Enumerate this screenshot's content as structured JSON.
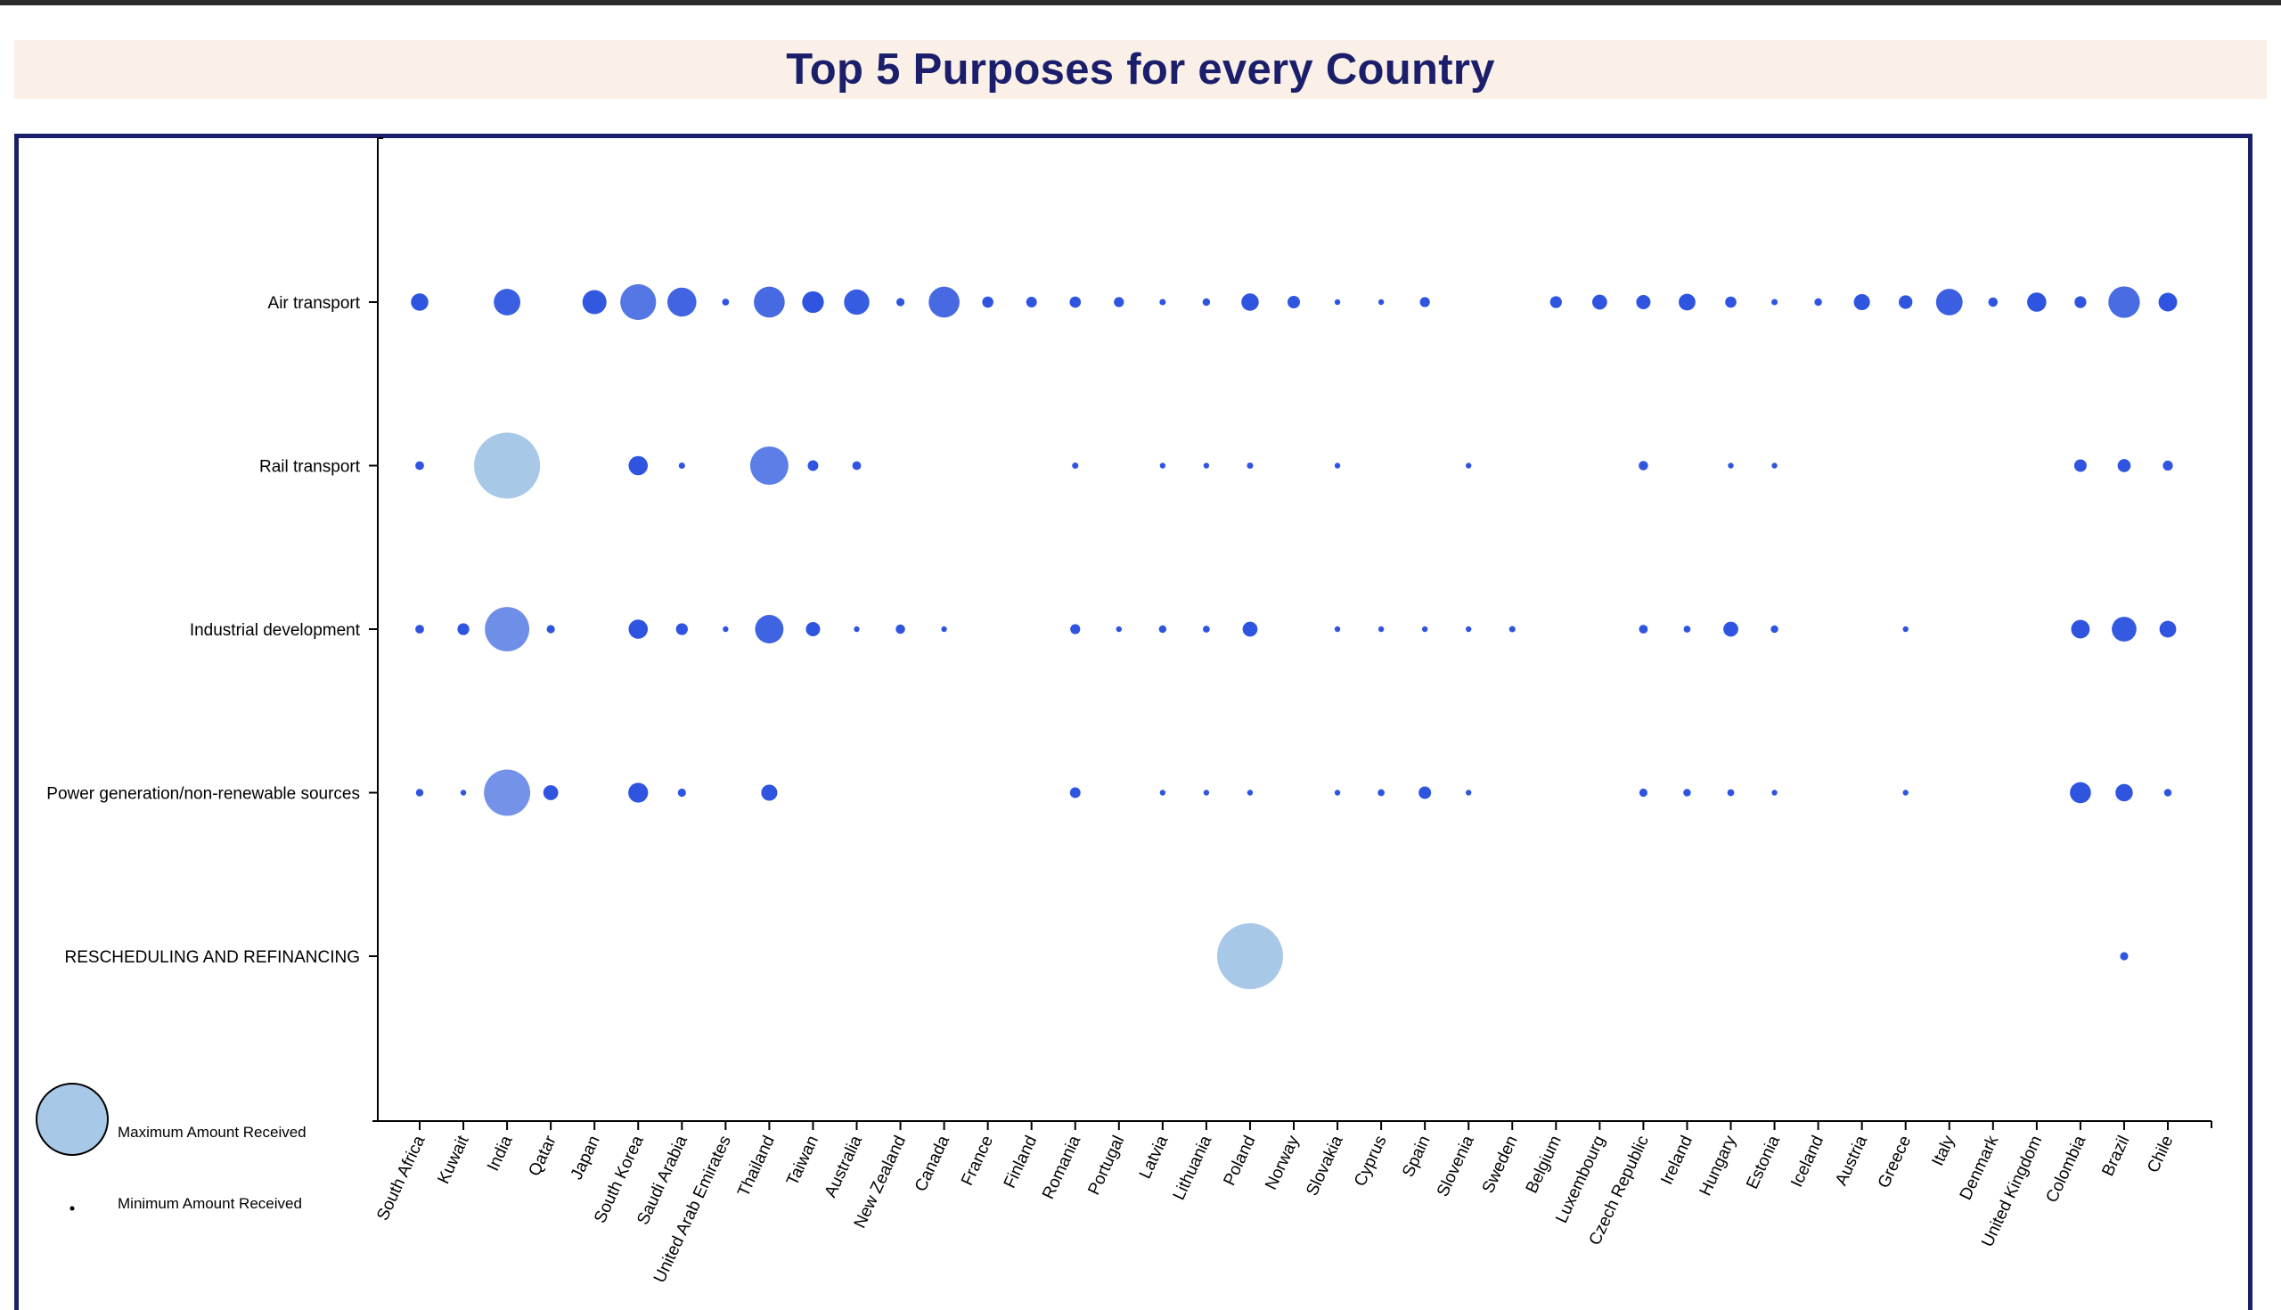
{
  "title": "Top 5 Purposes for every Country",
  "colors": {
    "title": "#1b1f6b",
    "frame": "#1b1f6b",
    "title_band": "#fbf0e8",
    "bubble_max": "#a8c8e8",
    "bubble_mid": "#6f8ee8",
    "bubble_min": "#2f55e0"
  },
  "legend": {
    "max_label": "Maximum Amount Received",
    "min_label": "Minimum Amount Received"
  },
  "chart_data": {
    "type": "scatter",
    "title": "Top 5 Purposes for every Country",
    "size_encoding": "amount received (relative bubble size, 0-1)",
    "x_categories": [
      "South Africa",
      "Kuwait",
      "India",
      "Qatar",
      "Japan",
      "South Korea",
      "Saudi Arabia",
      "United Arab Emirates",
      "Thailand",
      "Taiwan",
      "Australia",
      "New Zealand",
      "Canada",
      "France",
      "Finland",
      "Romania",
      "Portugal",
      "Latvia",
      "Lithuania",
      "Poland",
      "Norway",
      "Slovakia",
      "Cyprus",
      "Spain",
      "Slovenia",
      "Sweden",
      "Belgium",
      "Luxembourg",
      "Czech Republic",
      "Ireland",
      "Hungary",
      "Estonia",
      "Iceland",
      "Austria",
      "Greece",
      "Italy",
      "Denmark",
      "United Kingdom",
      "Colombia",
      "Brazil",
      "Chile"
    ],
    "y_categories": [
      "Air transport",
      "Rail transport",
      "Industrial development",
      "Power generation/non-renewable sources",
      "RESCHEDULING AND REFINANCING"
    ],
    "points": [
      {
        "country": "South Africa",
        "purpose": "Air transport",
        "size": 0.21
      },
      {
        "country": "India",
        "purpose": "Air transport",
        "size": 0.36
      },
      {
        "country": "Japan",
        "purpose": "Air transport",
        "size": 0.32
      },
      {
        "country": "South Korea",
        "purpose": "Air transport",
        "size": 0.51
      },
      {
        "country": "Saudi Arabia",
        "purpose": "Air transport",
        "size": 0.4
      },
      {
        "country": "United Arab Emirates",
        "purpose": "Air transport",
        "size": 0.04
      },
      {
        "country": "Thailand",
        "purpose": "Air transport",
        "size": 0.43
      },
      {
        "country": "Taiwan",
        "purpose": "Air transport",
        "size": 0.28
      },
      {
        "country": "Australia",
        "purpose": "Air transport",
        "size": 0.34
      },
      {
        "country": "New Zealand",
        "purpose": "Air transport",
        "size": 0.06
      },
      {
        "country": "Canada",
        "purpose": "Air transport",
        "size": 0.43
      },
      {
        "country": "France",
        "purpose": "Air transport",
        "size": 0.11
      },
      {
        "country": "Finland",
        "purpose": "Air transport",
        "size": 0.1
      },
      {
        "country": "Romania",
        "purpose": "Air transport",
        "size": 0.11
      },
      {
        "country": "Portugal",
        "purpose": "Air transport",
        "size": 0.09
      },
      {
        "country": "Latvia",
        "purpose": "Air transport",
        "size": 0.03
      },
      {
        "country": "Lithuania",
        "purpose": "Air transport",
        "size": 0.05
      },
      {
        "country": "Poland",
        "purpose": "Air transport",
        "size": 0.21
      },
      {
        "country": "Norway",
        "purpose": "Air transport",
        "size": 0.13
      },
      {
        "country": "Slovakia",
        "purpose": "Air transport",
        "size": 0.02
      },
      {
        "country": "Cyprus",
        "purpose": "Air transport",
        "size": 0.02
      },
      {
        "country": "Spain",
        "purpose": "Air transport",
        "size": 0.09
      },
      {
        "country": "Belgium",
        "purpose": "Air transport",
        "size": 0.12
      },
      {
        "country": "Luxembourg",
        "purpose": "Air transport",
        "size": 0.17
      },
      {
        "country": "Czech Republic",
        "purpose": "Air transport",
        "size": 0.16
      },
      {
        "country": "Ireland",
        "purpose": "Air transport",
        "size": 0.2
      },
      {
        "country": "Hungary",
        "purpose": "Air transport",
        "size": 0.11
      },
      {
        "country": "Estonia",
        "purpose": "Air transport",
        "size": 0.03
      },
      {
        "country": "Iceland",
        "purpose": "Air transport",
        "size": 0.05
      },
      {
        "country": "Austria",
        "purpose": "Air transport",
        "size": 0.19
      },
      {
        "country": "Greece",
        "purpose": "Air transport",
        "size": 0.15
      },
      {
        "country": "Italy",
        "purpose": "Air transport",
        "size": 0.36
      },
      {
        "country": "Denmark",
        "purpose": "Air transport",
        "size": 0.08
      },
      {
        "country": "United Kingdom",
        "purpose": "Air transport",
        "size": 0.24
      },
      {
        "country": "Colombia",
        "purpose": "Air transport",
        "size": 0.12
      },
      {
        "country": "Brazil",
        "purpose": "Air transport",
        "size": 0.44
      },
      {
        "country": "Chile",
        "purpose": "Air transport",
        "size": 0.23
      },
      {
        "country": "South Africa",
        "purpose": "Rail transport",
        "size": 0.07
      },
      {
        "country": "India",
        "purpose": "Rail transport",
        "size": 1.0
      },
      {
        "country": "South Korea",
        "purpose": "Rail transport",
        "size": 0.24
      },
      {
        "country": "Saudi Arabia",
        "purpose": "Rail transport",
        "size": 0.03
      },
      {
        "country": "Thailand",
        "purpose": "Rail transport",
        "size": 0.55
      },
      {
        "country": "Taiwan",
        "purpose": "Rail transport",
        "size": 0.1
      },
      {
        "country": "Australia",
        "purpose": "Rail transport",
        "size": 0.07
      },
      {
        "country": "Romania",
        "purpose": "Rail transport",
        "size": 0.03
      },
      {
        "country": "Latvia",
        "purpose": "Rail transport",
        "size": 0.02
      },
      {
        "country": "Lithuania",
        "purpose": "Rail transport",
        "size": 0.02
      },
      {
        "country": "Poland",
        "purpose": "Rail transport",
        "size": 0.03
      },
      {
        "country": "Slovakia",
        "purpose": "Rail transport",
        "size": 0.02
      },
      {
        "country": "Slovenia",
        "purpose": "Rail transport",
        "size": 0.02
      },
      {
        "country": "Czech Republic",
        "purpose": "Rail transport",
        "size": 0.08
      },
      {
        "country": "Hungary",
        "purpose": "Rail transport",
        "size": 0.02
      },
      {
        "country": "Estonia",
        "purpose": "Rail transport",
        "size": 0.02
      },
      {
        "country": "Colombia",
        "purpose": "Rail transport",
        "size": 0.13
      },
      {
        "country": "Brazil",
        "purpose": "Rail transport",
        "size": 0.14
      },
      {
        "country": "Chile",
        "purpose": "Rail transport",
        "size": 0.09
      },
      {
        "country": "South Africa",
        "purpose": "Industrial development",
        "size": 0.07
      },
      {
        "country": "Kuwait",
        "purpose": "Industrial development",
        "size": 0.12
      },
      {
        "country": "India",
        "purpose": "Industrial development",
        "size": 0.65
      },
      {
        "country": "Qatar",
        "purpose": "Industrial development",
        "size": 0.06
      },
      {
        "country": "South Korea",
        "purpose": "Industrial development",
        "size": 0.24
      },
      {
        "country": "Saudi Arabia",
        "purpose": "Industrial development",
        "size": 0.12
      },
      {
        "country": "United Arab Emirates",
        "purpose": "Industrial development",
        "size": 0.02
      },
      {
        "country": "Thailand",
        "purpose": "Industrial development",
        "size": 0.39
      },
      {
        "country": "Taiwan",
        "purpose": "Industrial development",
        "size": 0.16
      },
      {
        "country": "Australia",
        "purpose": "Industrial development",
        "size": 0.02
      },
      {
        "country": "New Zealand",
        "purpose": "Industrial development",
        "size": 0.08
      },
      {
        "country": "Canada",
        "purpose": "Industrial development",
        "size": 0.02
      },
      {
        "country": "Romania",
        "purpose": "Industrial development",
        "size": 0.09
      },
      {
        "country": "Portugal",
        "purpose": "Industrial development",
        "size": 0.02
      },
      {
        "country": "Latvia",
        "purpose": "Industrial development",
        "size": 0.05
      },
      {
        "country": "Lithuania",
        "purpose": "Industrial development",
        "size": 0.04
      },
      {
        "country": "Poland",
        "purpose": "Industrial development",
        "size": 0.17
      },
      {
        "country": "Slovakia",
        "purpose": "Industrial development",
        "size": 0.02
      },
      {
        "country": "Cyprus",
        "purpose": "Industrial development",
        "size": 0.02
      },
      {
        "country": "Spain",
        "purpose": "Industrial development",
        "size": 0.02
      },
      {
        "country": "Slovenia",
        "purpose": "Industrial development",
        "size": 0.02
      },
      {
        "country": "Sweden",
        "purpose": "Industrial development",
        "size": 0.03
      },
      {
        "country": "Czech Republic",
        "purpose": "Industrial development",
        "size": 0.07
      },
      {
        "country": "Ireland",
        "purpose": "Industrial development",
        "size": 0.04
      },
      {
        "country": "Hungary",
        "purpose": "Industrial development",
        "size": 0.17
      },
      {
        "country": "Estonia",
        "purpose": "Industrial development",
        "size": 0.05
      },
      {
        "country": "Greece",
        "purpose": "Industrial development",
        "size": 0.02
      },
      {
        "country": "Colombia",
        "purpose": "Industrial development",
        "size": 0.23
      },
      {
        "country": "Brazil",
        "purpose": "Industrial development",
        "size": 0.33
      },
      {
        "country": "Chile",
        "purpose": "Industrial development",
        "size": 0.2
      },
      {
        "country": "South Africa",
        "purpose": "Power generation/non-renewable sources",
        "size": 0.05
      },
      {
        "country": "Kuwait",
        "purpose": "Power generation/non-renewable sources",
        "size": 0.02
      },
      {
        "country": "India",
        "purpose": "Power generation/non-renewable sources",
        "size": 0.68
      },
      {
        "country": "Qatar",
        "purpose": "Power generation/non-renewable sources",
        "size": 0.17
      },
      {
        "country": "South Korea",
        "purpose": "Power generation/non-renewable sources",
        "size": 0.25
      },
      {
        "country": "Saudi Arabia",
        "purpose": "Power generation/non-renewable sources",
        "size": 0.06
      },
      {
        "country": "Thailand",
        "purpose": "Power generation/non-renewable sources",
        "size": 0.19
      },
      {
        "country": "Romania",
        "purpose": "Power generation/non-renewable sources",
        "size": 0.1
      },
      {
        "country": "Latvia",
        "purpose": "Power generation/non-renewable sources",
        "size": 0.02
      },
      {
        "country": "Lithuania",
        "purpose": "Power generation/non-renewable sources",
        "size": 0.02
      },
      {
        "country": "Poland",
        "purpose": "Power generation/non-renewable sources",
        "size": 0.02
      },
      {
        "country": "Slovakia",
        "purpose": "Power generation/non-renewable sources",
        "size": 0.02
      },
      {
        "country": "Cyprus",
        "purpose": "Power generation/non-renewable sources",
        "size": 0.04
      },
      {
        "country": "Spain",
        "purpose": "Power generation/non-renewable sources",
        "size": 0.13
      },
      {
        "country": "Slovenia",
        "purpose": "Power generation/non-renewable sources",
        "size": 0.02
      },
      {
        "country": "Czech Republic",
        "purpose": "Power generation/non-renewable sources",
        "size": 0.06
      },
      {
        "country": "Ireland",
        "purpose": "Power generation/non-renewable sources",
        "size": 0.05
      },
      {
        "country": "Hungary",
        "purpose": "Power generation/non-renewable sources",
        "size": 0.04
      },
      {
        "country": "Estonia",
        "purpose": "Power generation/non-renewable sources",
        "size": 0.02
      },
      {
        "country": "Greece",
        "purpose": "Power generation/non-renewable sources",
        "size": 0.02
      },
      {
        "country": "Colombia",
        "purpose": "Power generation/non-renewable sources",
        "size": 0.27
      },
      {
        "country": "Brazil",
        "purpose": "Power generation/non-renewable sources",
        "size": 0.21
      },
      {
        "country": "Chile",
        "purpose": "Power generation/non-renewable sources",
        "size": 0.05
      },
      {
        "country": "Poland",
        "purpose": "RESCHEDULING AND REFINANCING",
        "size": 1.0
      },
      {
        "country": "Brazil",
        "purpose": "RESCHEDULING AND REFINANCING",
        "size": 0.06
      }
    ]
  }
}
